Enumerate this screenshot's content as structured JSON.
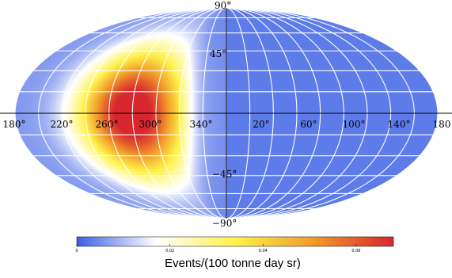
{
  "chart_data": {
    "type": "heatmap",
    "projection": "mollweide",
    "colormap": [
      "#3b5fe6",
      "#ffffff",
      "#fff34c",
      "#f29a2a",
      "#d7262e"
    ],
    "longitude_ticks": [
      "180°",
      "220°",
      "260°",
      "300°",
      "340°",
      "20°",
      "60°",
      "100°",
      "140°",
      "180"
    ],
    "latitude_ticks": [
      "90°",
      "45°",
      "−45°",
      "−90°"
    ],
    "grid": true,
    "hotspot": {
      "longitude": 280,
      "latitude": 0,
      "peak_value": 0.068
    },
    "background_levels": {
      "left_hemisphere": 0.006,
      "right_hemisphere": 0.003
    },
    "colorbar": {
      "range": [
        0,
        0.068
      ],
      "ticks": [
        {
          "value": 0,
          "label": "0"
        },
        {
          "value": 0.02,
          "label": "0.02"
        },
        {
          "value": 0.04,
          "label": "0.04"
        },
        {
          "value": 0.06,
          "label": "0.06"
        }
      ],
      "label": "Events/(100 tonne day sr)"
    }
  }
}
